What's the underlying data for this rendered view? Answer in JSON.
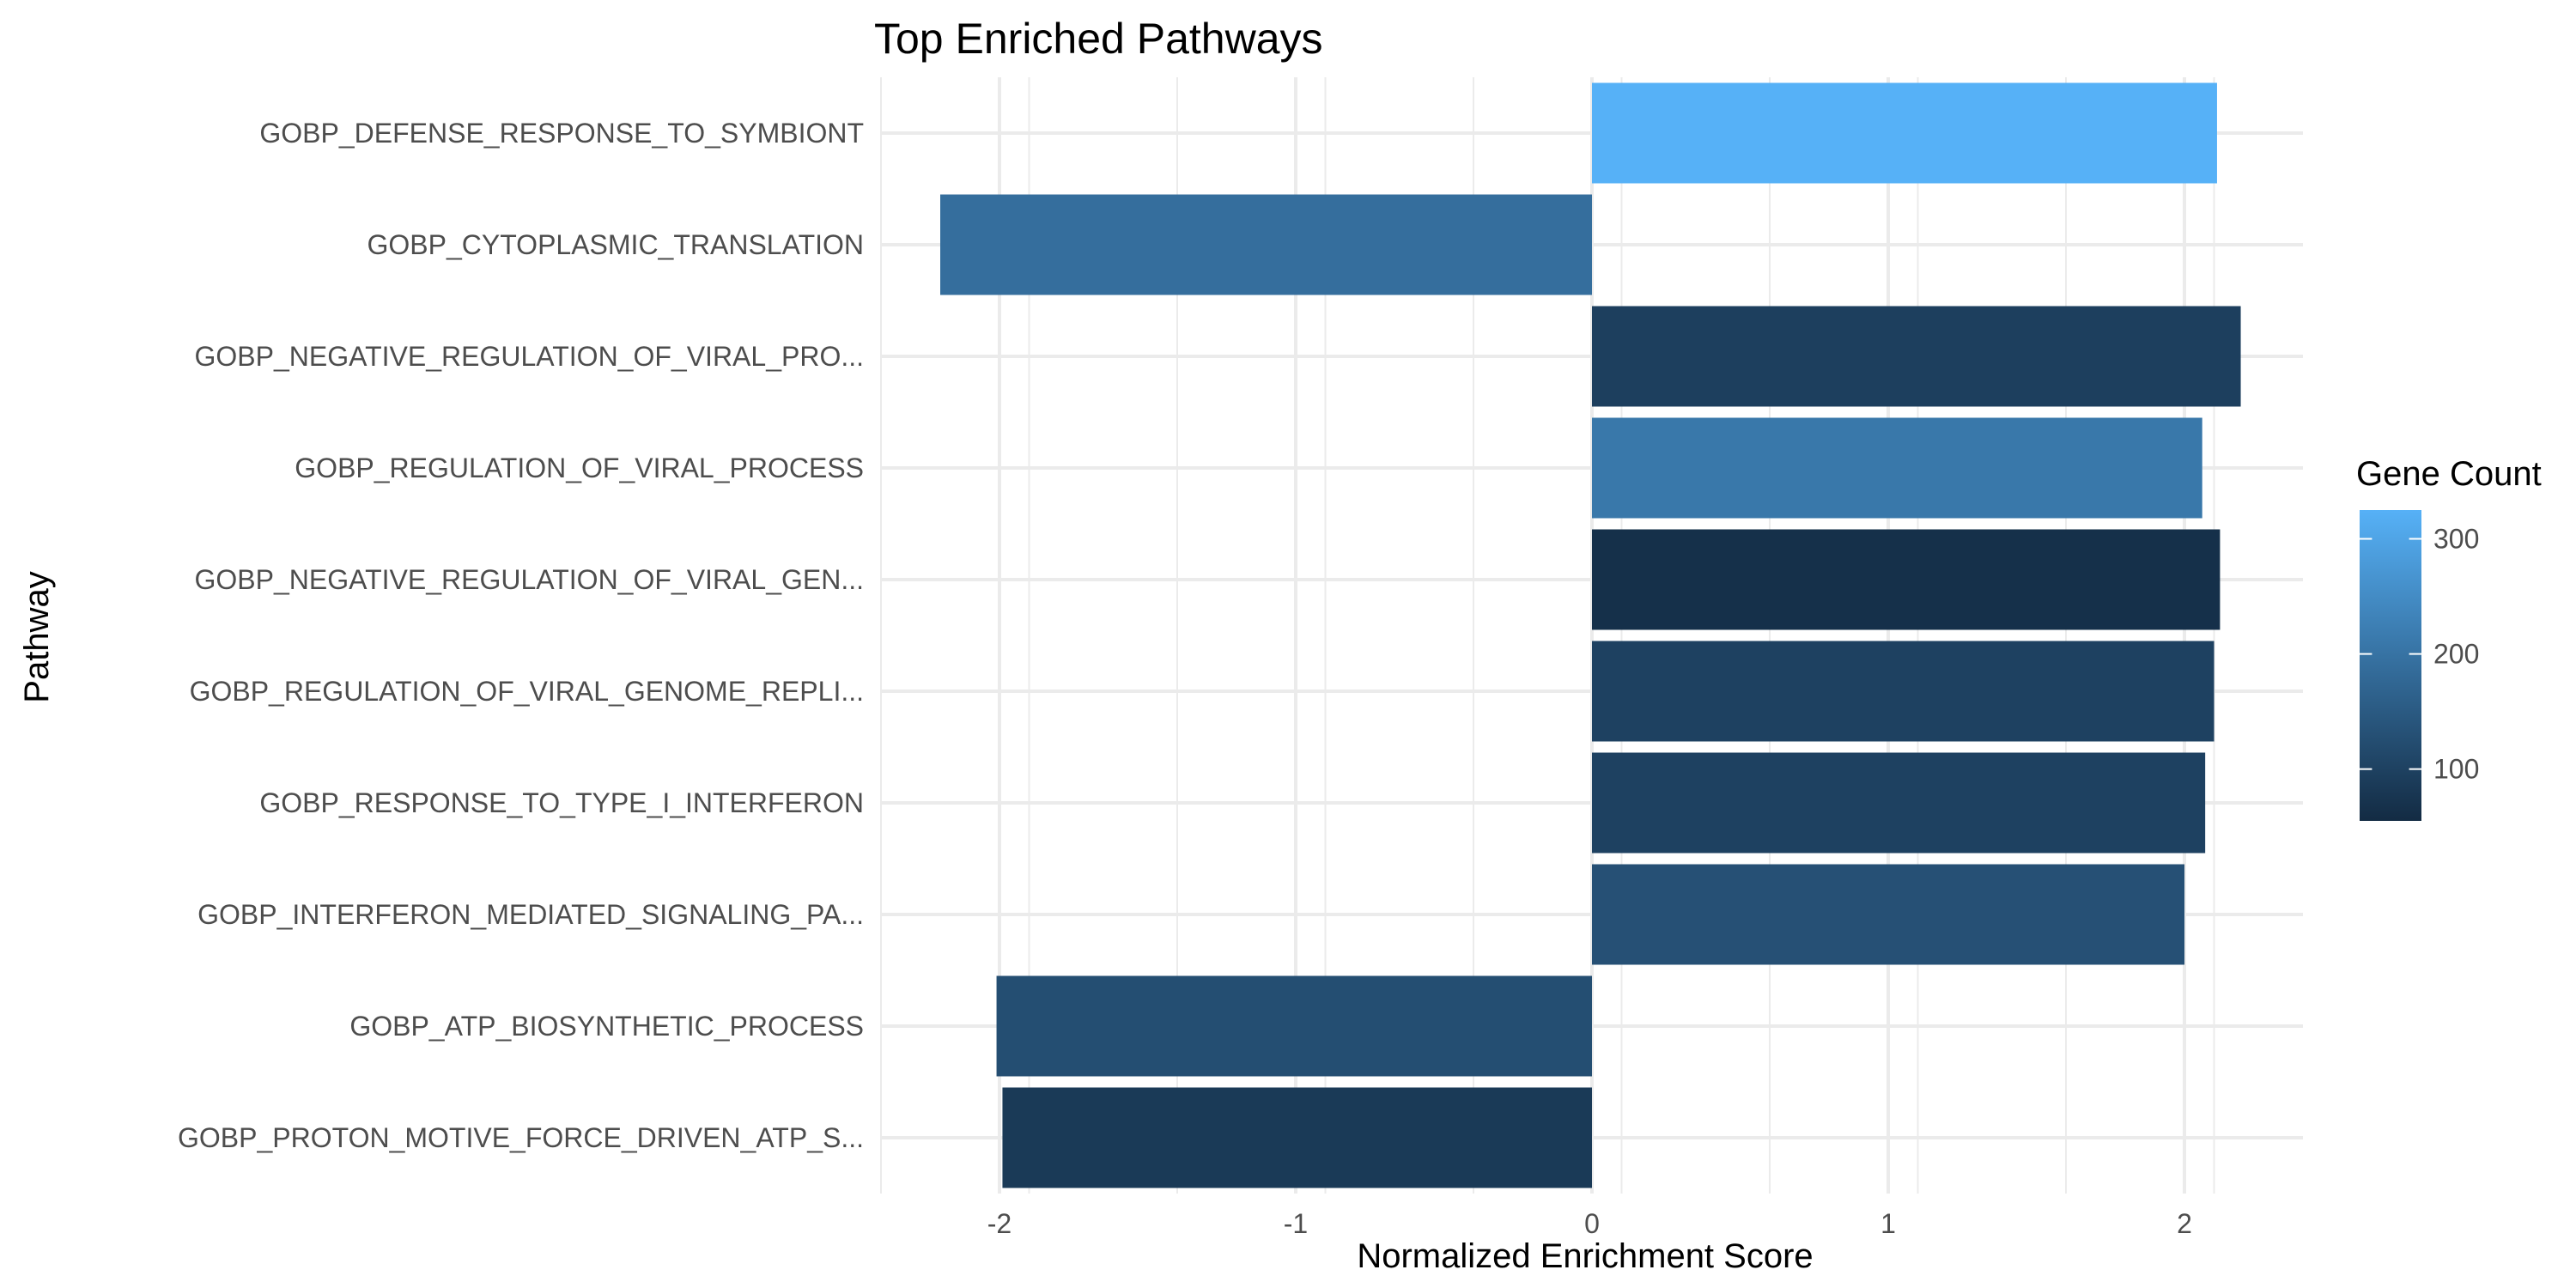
{
  "chart_data": {
    "type": "bar",
    "orientation": "horizontal",
    "title": "Top Enriched Pathways",
    "xlabel": "Normalized Enrichment Score",
    "ylabel": "Pathway",
    "xlim": [
      -2.4,
      2.4
    ],
    "xticks": [
      -2,
      -1,
      0,
      1,
      2
    ],
    "grid": true,
    "categories": [
      "GOBP_DEFENSE_RESPONSE_TO_SYMBIONT",
      "GOBP_CYTOPLASMIC_TRANSLATION",
      "GOBP_NEGATIVE_REGULATION_OF_VIRAL_PRO...",
      "GOBP_REGULATION_OF_VIRAL_PROCESS",
      "GOBP_NEGATIVE_REGULATION_OF_VIRAL_GEN...",
      "GOBP_REGULATION_OF_VIRAL_GENOME_REPLI...",
      "GOBP_RESPONSE_TO_TYPE_I_INTERFERON",
      "GOBP_INTERFERON_MEDIATED_SIGNALING_PA...",
      "GOBP_ATP_BIOSYNTHETIC_PROCESS",
      "GOBP_PROTON_MOTIVE_FORCE_DRIVEN_ATP_S..."
    ],
    "values": [
      2.11,
      -2.2,
      2.19,
      2.06,
      2.12,
      2.1,
      2.07,
      2.0,
      -2.01,
      -1.99
    ],
    "gene_count": [
      325,
      190,
      95,
      210,
      65,
      100,
      100,
      130,
      125,
      85
    ],
    "legend": {
      "title": "Gene Count",
      "placement": "right",
      "ticks": [
        100,
        200,
        300
      ],
      "range": [
        55,
        325
      ],
      "low_color": "#132B43",
      "high_color": "#56B1F7"
    }
  }
}
